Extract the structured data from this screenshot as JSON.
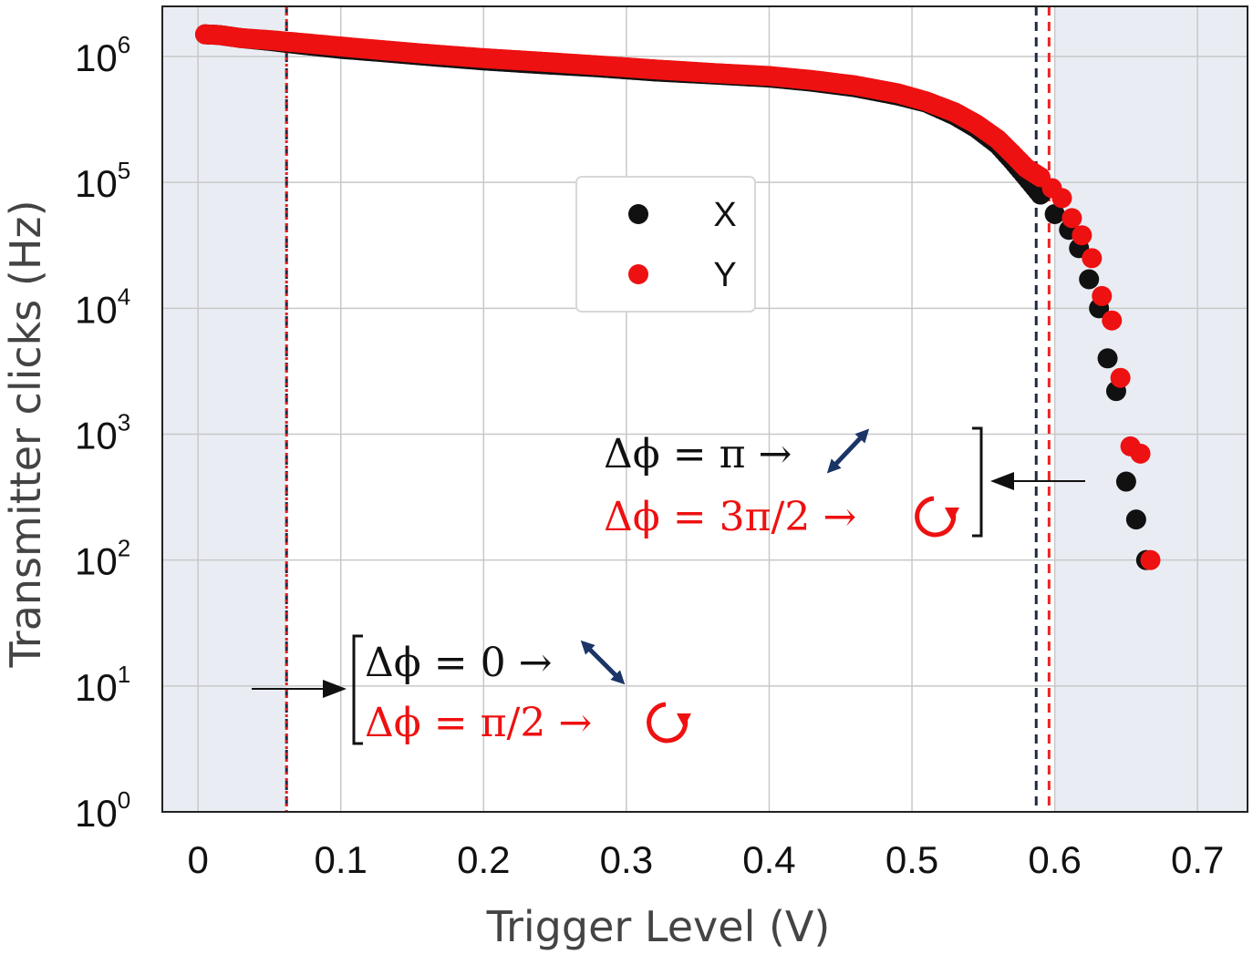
{
  "chart_data": {
    "type": "scatter",
    "xlabel": "Trigger Level (V)",
    "ylabel": "Transmitter clicks (Hz)",
    "y_scale": "log",
    "xlim": [
      -0.025,
      0.735
    ],
    "ylim": [
      1,
      2500000
    ],
    "x_ticks": [
      "0",
      "0.1",
      "0.2",
      "0.3",
      "0.4",
      "0.5",
      "0.6",
      "0.7"
    ],
    "y_ticks": [
      {
        "base": "10",
        "exp": "0"
      },
      {
        "base": "10",
        "exp": "1"
      },
      {
        "base": "10",
        "exp": "2"
      },
      {
        "base": "10",
        "exp": "3"
      },
      {
        "base": "10",
        "exp": "4"
      },
      {
        "base": "10",
        "exp": "5"
      },
      {
        "base": "10",
        "exp": "6"
      }
    ],
    "grid": true,
    "legend_position": "center",
    "series": [
      {
        "name": "X",
        "color": "#111111",
        "x": [
          0.005,
          0.015,
          0.03,
          0.05,
          0.07,
          0.1,
          0.13,
          0.16,
          0.2,
          0.24,
          0.28,
          0.32,
          0.36,
          0.4,
          0.43,
          0.46,
          0.49,
          0.51,
          0.53,
          0.545,
          0.56,
          0.57,
          0.58,
          0.59,
          0.6,
          0.61,
          0.617,
          0.624,
          0.631,
          0.637,
          0.643,
          0.65,
          0.657,
          0.664
        ],
        "y": [
          1500000,
          1480000,
          1400000,
          1330000,
          1250000,
          1150000,
          1080000,
          1010000,
          930000,
          870000,
          820000,
          760000,
          720000,
          680000,
          630000,
          570000,
          490000,
          430000,
          340000,
          270000,
          200000,
          150000,
          110000,
          80000,
          56000,
          42000,
          30000,
          17000,
          10000,
          4000,
          2200,
          420,
          210,
          100
        ]
      },
      {
        "name": "Y",
        "color": "#ee1111",
        "x": [
          0.005,
          0.015,
          0.03,
          0.05,
          0.07,
          0.1,
          0.13,
          0.16,
          0.2,
          0.24,
          0.28,
          0.32,
          0.36,
          0.4,
          0.43,
          0.46,
          0.49,
          0.51,
          0.53,
          0.545,
          0.56,
          0.57,
          0.58,
          0.59,
          0.598,
          0.605,
          0.612,
          0.619,
          0.626,
          0.633,
          0.64,
          0.646,
          0.653,
          0.66,
          0.667
        ],
        "y": [
          1500000,
          1480000,
          1400000,
          1350000,
          1290000,
          1200000,
          1120000,
          1050000,
          970000,
          910000,
          850000,
          790000,
          740000,
          700000,
          650000,
          590000,
          510000,
          440000,
          360000,
          290000,
          220000,
          170000,
          130000,
          110000,
          90000,
          75000,
          52000,
          38000,
          25000,
          12500,
          8000,
          2800,
          800,
          700,
          100
        ]
      }
    ],
    "vertical_lines": [
      {
        "x": 0.062,
        "color": "#1f2a44",
        "style": "dashed"
      },
      {
        "x": 0.062,
        "color": "#dd2222",
        "style": "dotted"
      },
      {
        "x": 0.587,
        "color": "#1f2a44",
        "style": "dashed"
      },
      {
        "x": 0.596,
        "color": "#ee2222",
        "style": "dashed"
      }
    ],
    "shaded_regions": [
      {
        "x0": -0.025,
        "x1": 0.062,
        "color": "#e9edf3"
      },
      {
        "x0": 0.6,
        "x1": 0.735,
        "color": "#e9edf3"
      }
    ],
    "annotations": {
      "upper": {
        "line1": "Δϕ = π →",
        "line2": "Δϕ = 3π/2 →",
        "line1_color": "#111111",
        "line2_color": "#ee1111"
      },
      "lower": {
        "line1": "Δϕ = 0 →",
        "line2": "Δϕ = π/2 →",
        "line1_color": "#111111",
        "line2_color": "#ee1111"
      }
    }
  }
}
